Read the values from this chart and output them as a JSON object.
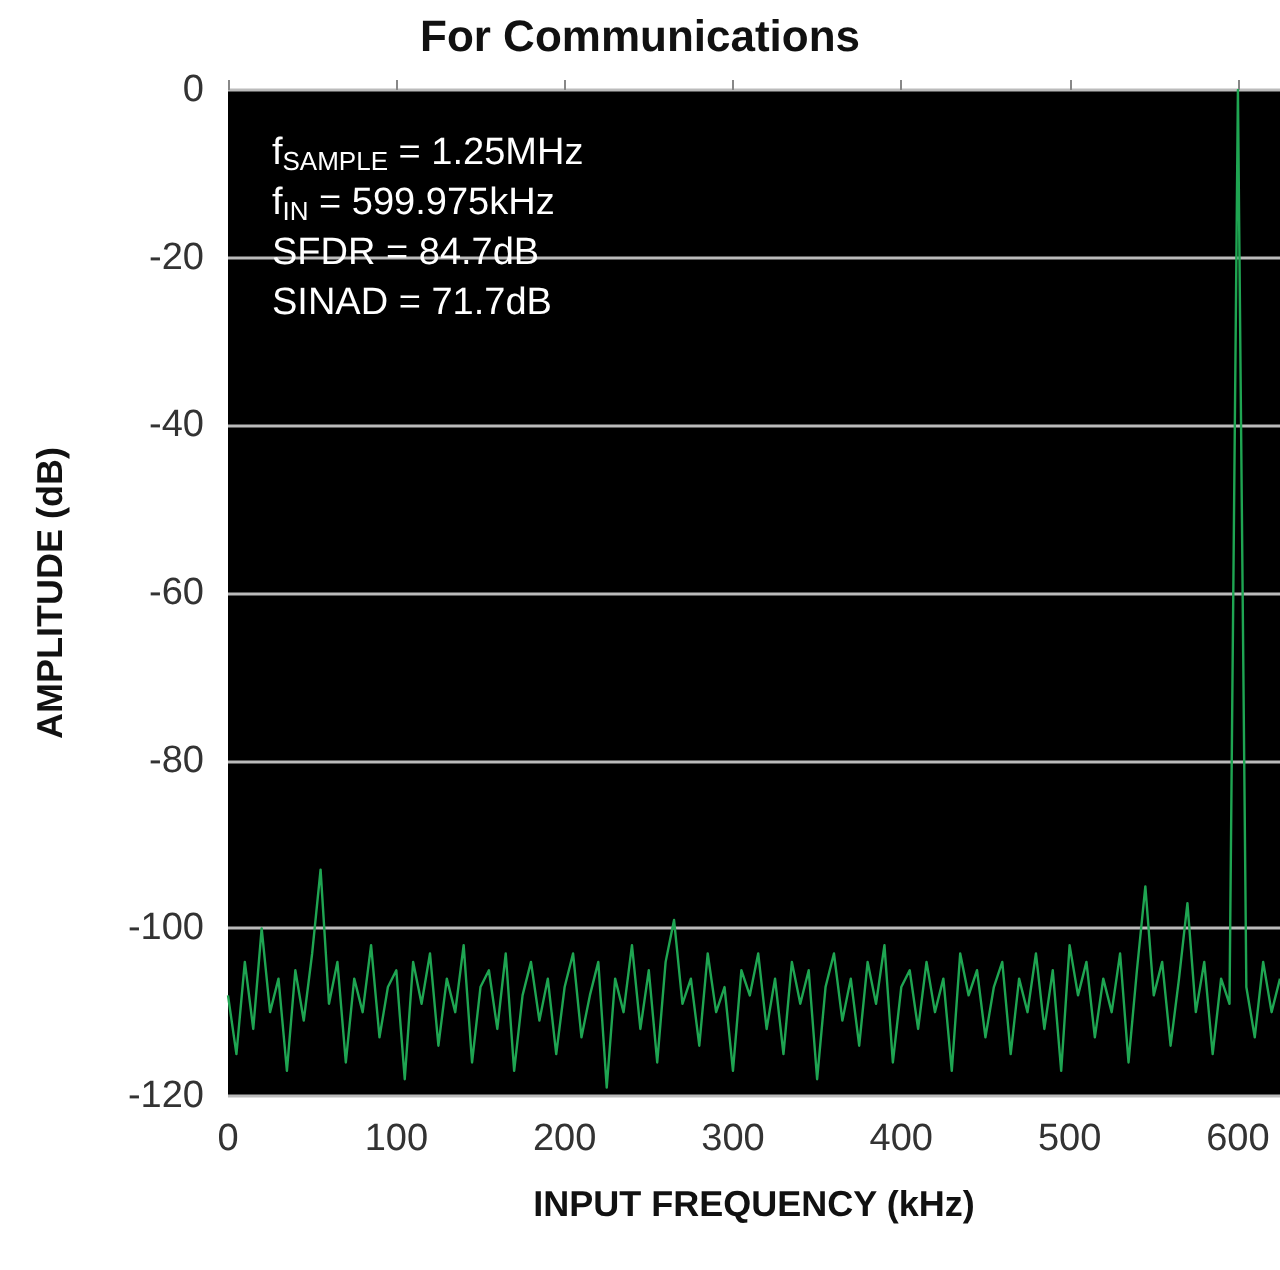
{
  "chart_data": {
    "type": "line",
    "title": "For Communications",
    "xlabel": "INPUT FREQUENCY (kHz)",
    "ylabel": "AMPLITUDE (dB)",
    "annotations": [
      "f$_{SAMPLE}$ = 1.25MHz",
      "f$_{IN}$ = 599.975kHz",
      "SFDR = 84.7dB",
      "SINAD = 71.7dB"
    ],
    "x": [
      0,
      5,
      10,
      15,
      20,
      25,
      30,
      35,
      40,
      45,
      50,
      55,
      60,
      65,
      70,
      75,
      80,
      85,
      90,
      95,
      100,
      105,
      110,
      115,
      120,
      125,
      130,
      135,
      140,
      145,
      150,
      155,
      160,
      165,
      170,
      175,
      180,
      185,
      190,
      195,
      200,
      205,
      210,
      215,
      220,
      225,
      230,
      235,
      240,
      245,
      250,
      255,
      260,
      265,
      270,
      275,
      280,
      285,
      290,
      295,
      300,
      305,
      310,
      315,
      320,
      325,
      330,
      335,
      340,
      345,
      350,
      355,
      360,
      365,
      370,
      375,
      380,
      385,
      390,
      395,
      400,
      405,
      410,
      415,
      420,
      425,
      430,
      435,
      440,
      445,
      450,
      455,
      460,
      465,
      470,
      475,
      480,
      485,
      490,
      495,
      500,
      505,
      510,
      515,
      520,
      525,
      530,
      535,
      540,
      545,
      550,
      555,
      560,
      565,
      570,
      575,
      580,
      585,
      590,
      595,
      600,
      605,
      610,
      615,
      620,
      625
    ],
    "series": [
      {
        "color": "#1fa552",
        "values": [
          -108,
          -115,
          -104,
          -112,
          -100,
          -110,
          -106,
          -117,
          -105,
          -111,
          -103,
          -93,
          -109,
          -104,
          -116,
          -106,
          -110,
          -102,
          -113,
          -107,
          -105,
          -118,
          -104,
          -109,
          -103,
          -114,
          -106,
          -110,
          -102,
          -116,
          -107,
          -105,
          -112,
          -103,
          -117,
          -108,
          -104,
          -111,
          -106,
          -115,
          -107,
          -103,
          -113,
          -108,
          -104,
          -119,
          -106,
          -110,
          -102,
          -112,
          -105,
          -116,
          -104,
          -99,
          -109,
          -106,
          -114,
          -103,
          -110,
          -107,
          -117,
          -105,
          -108,
          -103,
          -112,
          -106,
          -115,
          -104,
          -109,
          -105,
          -118,
          -107,
          -103,
          -111,
          -106,
          -114,
          -104,
          -109,
          -102,
          -116,
          -107,
          -105,
          -112,
          -104,
          -110,
          -106,
          -117,
          -103,
          -108,
          -105,
          -113,
          -107,
          -104,
          -115,
          -106,
          -110,
          -103,
          -112,
          -105,
          -117,
          -102,
          -108,
          -104,
          -113,
          -106,
          -110,
          -103,
          -116,
          -105,
          -95,
          -108,
          -104,
          -114,
          -106,
          -97,
          -110,
          -104,
          -115,
          -106,
          -109,
          0,
          -107,
          -113,
          -104,
          -110,
          -106
        ]
      }
    ],
    "xlim": [
      0,
      625
    ],
    "ylim": [
      -120,
      0
    ],
    "xticks": [
      0,
      100,
      200,
      300,
      400,
      500,
      600
    ],
    "yticks": [
      -120,
      -100,
      -80,
      -60,
      -40,
      -20,
      0
    ],
    "grid": "y"
  }
}
